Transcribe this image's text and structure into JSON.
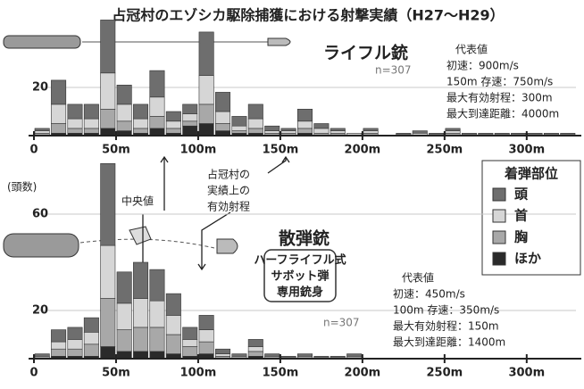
{
  "chart_data": [
    {
      "type": "histogram",
      "title": "占冠村のエゾシカ駆除捕獲における射撃実績（H27〜H29）",
      "label": "ライフル銃",
      "n_label": "n=307",
      "specs": [
        "代表値",
        "初速：900m/s",
        "150m 存速：750m/s",
        "最大有効射程：300m",
        "最大到達距離：4000m"
      ],
      "bins": [
        0,
        10,
        20,
        30,
        40,
        50,
        60,
        70,
        80,
        90,
        100,
        110,
        120,
        130,
        140,
        150,
        160,
        170,
        180,
        190,
        200,
        210,
        220,
        230,
        240,
        250,
        260,
        270,
        280,
        290,
        300,
        310,
        320,
        330
      ],
      "series": [
        {
          "color": "#2a2a2a",
          "values": [
            0,
            1,
            1,
            1,
            3,
            2,
            1,
            3,
            1,
            4,
            5,
            2,
            1,
            1,
            0,
            0,
            1,
            0,
            0,
            0,
            0,
            0,
            0,
            0,
            0,
            0,
            0,
            0,
            0,
            0,
            0,
            0,
            0
          ]
        },
        {
          "color": "#a8a8a8",
          "values": [
            1,
            4,
            2,
            2,
            8,
            4,
            2,
            5,
            2,
            2,
            8,
            3,
            1,
            2,
            1,
            1,
            2,
            1,
            1,
            0,
            1,
            0,
            0,
            0,
            0,
            1,
            0,
            0,
            0,
            0,
            0,
            0,
            0
          ]
        },
        {
          "color": "#d6d6d6",
          "values": [
            1,
            8,
            4,
            4,
            15,
            7,
            4,
            8,
            3,
            3,
            12,
            5,
            2,
            4,
            1,
            1,
            3,
            2,
            1,
            1,
            1,
            0,
            0,
            1,
            0,
            1,
            0,
            0,
            0,
            0,
            0,
            0,
            0
          ]
        },
        {
          "color": "#6e6e6e",
          "values": [
            1,
            10,
            6,
            6,
            22,
            8,
            6,
            11,
            4,
            4,
            18,
            8,
            4,
            6,
            2,
            1,
            5,
            2,
            1,
            0,
            1,
            0,
            1,
            1,
            1,
            1,
            1,
            1,
            1,
            1,
            1,
            1,
            1
          ]
        }
      ],
      "xlim": [
        0,
        330
      ],
      "xticks": [
        0,
        {
          "value": 50,
          "label": "50m"
        },
        {
          "value": 100,
          "label": "100m"
        },
        {
          "value": 150,
          "label": "150m"
        },
        {
          "value": 200,
          "label": "200m"
        },
        {
          "value": 250,
          "label": "250m"
        },
        {
          "value": 300,
          "label": "300m"
        }
      ],
      "ylim": [
        0,
        50
      ],
      "yticks": [
        20
      ],
      "grid": true
    },
    {
      "type": "histogram",
      "y_label": "(頭数)",
      "label": "散弾銃",
      "ammo": [
        "ハーフライフル式",
        "サボット弾",
        "専用銃身"
      ],
      "n_label": "n=307",
      "specs": [
        "代表値",
        "初速：450m/s",
        "100m 存速：350m/s",
        "最大有効射程：150m",
        "最大到達距離：1400m"
      ],
      "median_label": "中央値",
      "range_label": [
        "占冠村の",
        "実績上の",
        "有効射程"
      ],
      "legend_title": "着弾部位",
      "bins": [
        0,
        10,
        20,
        30,
        40,
        50,
        60,
        70,
        80,
        90,
        100,
        110,
        120,
        130,
        140,
        150,
        160,
        170,
        180,
        190,
        200
      ],
      "series": [
        {
          "name": "ほか",
          "color": "#2a2a2a",
          "values": [
            0,
            1,
            1,
            1,
            5,
            3,
            3,
            3,
            2,
            1,
            2,
            0,
            0,
            1,
            0,
            0,
            0,
            0,
            0,
            0
          ]
        },
        {
          "name": "胸",
          "color": "#a8a8a8",
          "values": [
            1,
            3,
            3,
            5,
            20,
            9,
            10,
            10,
            8,
            4,
            5,
            1,
            1,
            2,
            1,
            0,
            1,
            0,
            0,
            1
          ]
        },
        {
          "name": "首",
          "color": "#d6d6d6",
          "values": [
            0,
            3,
            4,
            5,
            22,
            11,
            12,
            11,
            8,
            3,
            5,
            1,
            0,
            2,
            0,
            0,
            0,
            0,
            0,
            0
          ]
        },
        {
          "name": "頭",
          "color": "#6e6e6e",
          "values": [
            1,
            5,
            5,
            6,
            34,
            13,
            15,
            13,
            9,
            5,
            6,
            2,
            1,
            3,
            1,
            1,
            1,
            1,
            1,
            1
          ]
        }
      ],
      "xlim": [
        0,
        330
      ],
      "xticks": [
        0,
        {
          "value": 50,
          "label": "50m"
        },
        {
          "value": 100,
          "label": "100m"
        },
        {
          "value": 150,
          "label": "150m"
        },
        {
          "value": 200,
          "label": "200m"
        },
        {
          "value": 250,
          "label": "250m"
        },
        {
          "value": 300,
          "label": "300m"
        }
      ],
      "ylim": [
        0,
        90
      ],
      "yticks": [
        20,
        60
      ],
      "grid": true
    }
  ]
}
